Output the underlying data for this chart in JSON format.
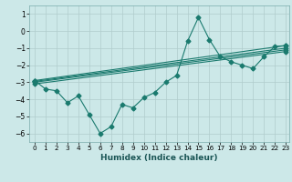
{
  "xlabel": "Humidex (Indice chaleur)",
  "ylabel": "",
  "xlim": [
    -0.5,
    23.3
  ],
  "ylim": [
    -6.5,
    1.5
  ],
  "yticks": [
    1,
    0,
    -1,
    -2,
    -3,
    -4,
    -5,
    -6
  ],
  "xticks": [
    0,
    1,
    2,
    3,
    4,
    5,
    6,
    7,
    8,
    9,
    10,
    11,
    12,
    13,
    14,
    15,
    16,
    17,
    18,
    19,
    20,
    21,
    22,
    23
  ],
  "background_color": "#cce8e8",
  "grid_color": "#b0cccc",
  "line_color": "#1a7a6e",
  "series": {
    "line1": [
      [
        0,
        -2.9
      ],
      [
        1,
        -3.4
      ],
      [
        2,
        -3.5
      ],
      [
        3,
        -4.2
      ],
      [
        4,
        -3.8
      ],
      [
        5,
        -4.9
      ],
      [
        6,
        -6.0
      ],
      [
        7,
        -5.6
      ],
      [
        8,
        -4.3
      ],
      [
        9,
        -4.5
      ],
      [
        10,
        -3.9
      ],
      [
        11,
        -3.6
      ],
      [
        12,
        -3.0
      ],
      [
        13,
        -2.6
      ],
      [
        14,
        -0.6
      ],
      [
        15,
        0.8
      ],
      [
        16,
        -0.5
      ],
      [
        17,
        -1.5
      ],
      [
        18,
        -1.8
      ],
      [
        19,
        -2.0
      ],
      [
        20,
        -2.2
      ],
      [
        21,
        -1.5
      ],
      [
        22,
        -0.9
      ],
      [
        23,
        -0.85
      ]
    ],
    "line2_straight": [
      [
        0,
        -2.9
      ],
      [
        23,
        -0.85
      ]
    ],
    "line3_straight": [
      [
        0,
        -2.95
      ],
      [
        23,
        -1.0
      ]
    ],
    "line4_straight": [
      [
        0,
        -3.0
      ],
      [
        23,
        -1.1
      ]
    ],
    "line5_straight": [
      [
        0,
        -3.1
      ],
      [
        23,
        -1.2
      ]
    ]
  }
}
